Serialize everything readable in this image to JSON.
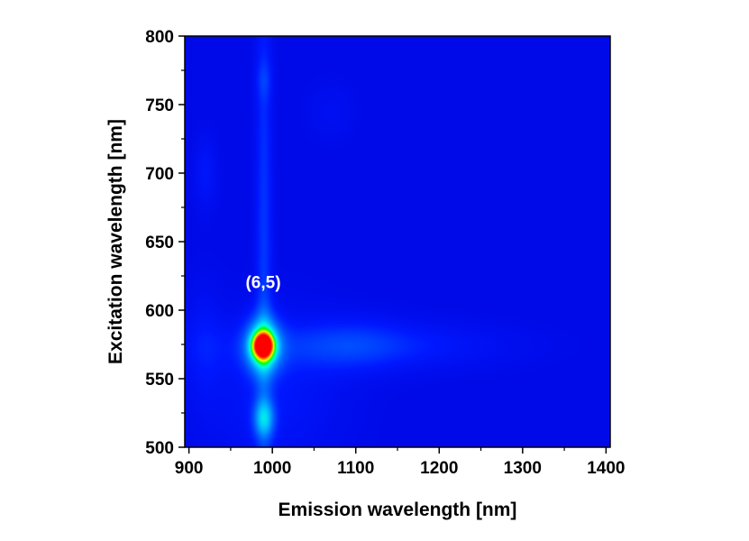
{
  "chart_data": {
    "type": "heatmap",
    "title": "",
    "xlabel": "Emission wavelength [nm]",
    "ylabel": "Excitation wavelength [nm]",
    "xlim": [
      895,
      1405
    ],
    "ylim": [
      500,
      800
    ],
    "xticks": [
      900,
      1000,
      1100,
      1200,
      1300,
      1400
    ],
    "yticks": [
      500,
      550,
      600,
      650,
      700,
      750,
      800
    ],
    "xtick_labels": [
      "900",
      "1000",
      "1100",
      "1200",
      "1300",
      "1400"
    ],
    "ytick_labels": [
      "500",
      "550",
      "600",
      "650",
      "700",
      "750",
      "800"
    ],
    "colormap": [
      "#0000d8",
      "#0018ff",
      "#0064ff",
      "#00b4ff",
      "#00ffe6",
      "#00ff00",
      "#ffff00",
      "#ff8000",
      "#ff0000"
    ],
    "background_level": 0.05,
    "features": [
      {
        "x": 989,
        "y": 574,
        "amplitude": 0.95,
        "sigma_x": 8,
        "sigma_y": 6
      },
      {
        "x": 989,
        "y": 574,
        "amplitude": 0.45,
        "sigma_x": 14,
        "sigma_y": 14
      },
      {
        "x": 990,
        "y": 521,
        "amplitude": 0.28,
        "sigma_x": 9,
        "sigma_y": 10
      },
      {
        "x": 990,
        "y": 650,
        "amplitude": 0.12,
        "sigma_x": 7,
        "sigma_y": 150
      },
      {
        "x": 990,
        "y": 768,
        "amplitude": 0.06,
        "sigma_x": 7,
        "sigma_y": 10
      },
      {
        "x": 1100,
        "y": 574,
        "amplitude": 0.1,
        "sigma_x": 110,
        "sigma_y": 12
      },
      {
        "x": 1100,
        "y": 575,
        "amplitude": 0.05,
        "sigma_x": 40,
        "sigma_y": 15
      },
      {
        "x": 920,
        "y": 700,
        "amplitude": 0.06,
        "sigma_x": 10,
        "sigma_y": 18
      },
      {
        "x": 918,
        "y": 575,
        "amplitude": 0.05,
        "sigma_x": 15,
        "sigma_y": 30
      },
      {
        "x": 1070,
        "y": 745,
        "amplitude": 0.03,
        "sigma_x": 20,
        "sigma_y": 15
      },
      {
        "x": 1000,
        "y": 540,
        "amplitude": 0.06,
        "sigma_x": 60,
        "sigma_y": 40
      }
    ],
    "annotations": [
      {
        "text": "(6,5)",
        "x": 989,
        "y": 616
      }
    ]
  }
}
